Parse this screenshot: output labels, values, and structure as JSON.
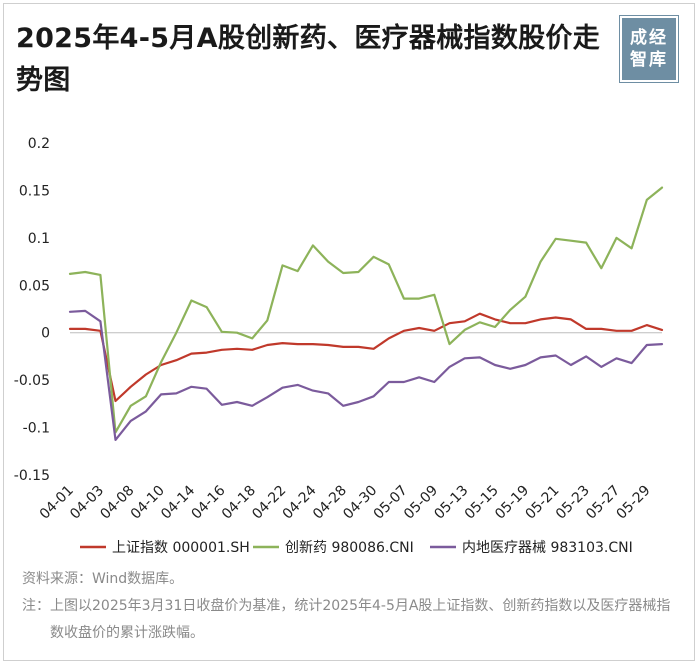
{
  "header": {
    "title": "2025年4-5月A股创新药、医疗器械指数股价走势图",
    "logo_line1": "成经",
    "logo_line2": "智库"
  },
  "chart_data": {
    "type": "line",
    "ylim": [
      -0.15,
      0.2
    ],
    "yticks": [
      {
        "value": 0.2,
        "label": "0.2"
      },
      {
        "value": 0.15,
        "label": "0.15"
      },
      {
        "value": 0.1,
        "label": "0.1"
      },
      {
        "value": 0.05,
        "label": "0.05"
      },
      {
        "value": 0,
        "label": "0"
      },
      {
        "value": -0.05,
        "label": "-0.05"
      },
      {
        "value": -0.1,
        "label": "-0.1"
      },
      {
        "value": -0.15,
        "label": "-0.15"
      }
    ],
    "x": [
      "04-01",
      "04-02",
      "04-03",
      "04-07",
      "04-08",
      "04-09",
      "04-10",
      "04-11",
      "04-14",
      "04-15",
      "04-16",
      "04-17",
      "04-18",
      "04-21",
      "04-22",
      "04-23",
      "04-24",
      "04-25",
      "04-28",
      "04-29",
      "04-30",
      "05-06",
      "05-07",
      "05-08",
      "05-09",
      "05-12",
      "05-13",
      "05-14",
      "05-15",
      "05-16",
      "05-19",
      "05-20",
      "05-21",
      "05-22",
      "05-23",
      "05-26",
      "05-27",
      "05-28",
      "05-29",
      "05-30"
    ],
    "xtick_labels": [
      "04-01",
      "04-03",
      "04-08",
      "04-10",
      "04-14",
      "04-16",
      "04-18",
      "04-22",
      "04-24",
      "04-28",
      "04-30",
      "05-07",
      "05-09",
      "05-13",
      "05-15",
      "05-19",
      "05-21",
      "05-23",
      "05-27",
      "05-29"
    ],
    "series": [
      {
        "name": "上证指数 000001.SH",
        "color": "#c0392b",
        "values": [
          0.004,
          0.004,
          0.002,
          -0.072,
          -0.057,
          -0.044,
          -0.034,
          -0.029,
          -0.022,
          -0.021,
          -0.018,
          -0.017,
          -0.018,
          -0.013,
          -0.011,
          -0.012,
          -0.012,
          -0.013,
          -0.015,
          -0.015,
          -0.017,
          -0.006,
          0.002,
          0.005,
          0.002,
          0.01,
          0.012,
          0.02,
          0.014,
          0.01,
          0.01,
          0.014,
          0.016,
          0.014,
          0.004,
          0.004,
          0.002,
          0.002,
          0.008,
          0.003
        ]
      },
      {
        "name": "创新药 980086.CNI",
        "color": "#8db35a",
        "values": [
          0.062,
          0.064,
          0.061,
          -0.105,
          -0.077,
          -0.067,
          -0.031,
          0,
          0.034,
          0.027,
          0.001,
          0,
          -0.006,
          0.013,
          0.071,
          0.065,
          0.092,
          0.075,
          0.063,
          0.064,
          0.08,
          0.072,
          0.036,
          0.036,
          0.04,
          -0.012,
          0.003,
          0.011,
          0.006,
          0.024,
          0.038,
          0.075,
          0.099,
          0.097,
          0.095,
          0.068,
          0.1,
          0.089,
          0.14,
          0.153
        ]
      },
      {
        "name": "内地医疗器械 983103.CNI",
        "color": "#7b5b9c",
        "values": [
          0.022,
          0.023,
          0.012,
          -0.113,
          -0.093,
          -0.083,
          -0.065,
          -0.064,
          -0.057,
          -0.059,
          -0.076,
          -0.073,
          -0.077,
          -0.068,
          -0.058,
          -0.055,
          -0.061,
          -0.064,
          -0.077,
          -0.073,
          -0.067,
          -0.052,
          -0.052,
          -0.047,
          -0.052,
          -0.036,
          -0.027,
          -0.026,
          -0.034,
          -0.038,
          -0.034,
          -0.026,
          -0.024,
          -0.034,
          -0.025,
          -0.036,
          -0.027,
          -0.032,
          -0.013,
          -0.012
        ]
      }
    ],
    "legend_position": "bottom",
    "grid": false
  },
  "footer": {
    "source": "资料来源：Wind数据库。",
    "note_label": "注：",
    "note_text": "上图以2025年3月31日收盘价为基准，统计2025年4-5月A股上证指数、创新药指数以及医疗器械指数收盘价的累计涨跌幅。"
  }
}
